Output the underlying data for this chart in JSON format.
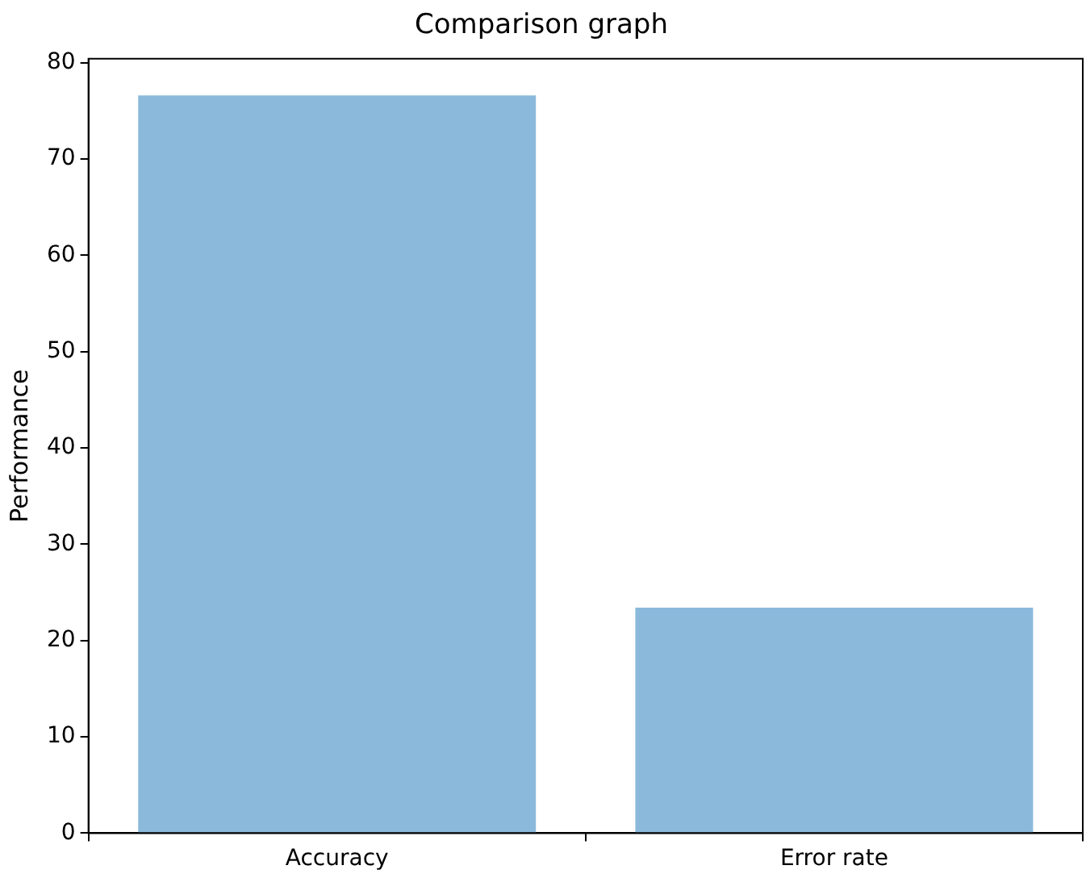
{
  "chart_data": {
    "type": "bar",
    "title": "Comparison graph",
    "ylabel": "Performance",
    "categories": [
      "Accuracy",
      "Error rate"
    ],
    "values": [
      76.6,
      23.4
    ],
    "color": "#8ab9db",
    "ylim": [
      0,
      80.4
    ],
    "yticks": [
      0,
      10,
      20,
      30,
      40,
      50,
      60,
      70,
      80
    ],
    "grid": false
  }
}
